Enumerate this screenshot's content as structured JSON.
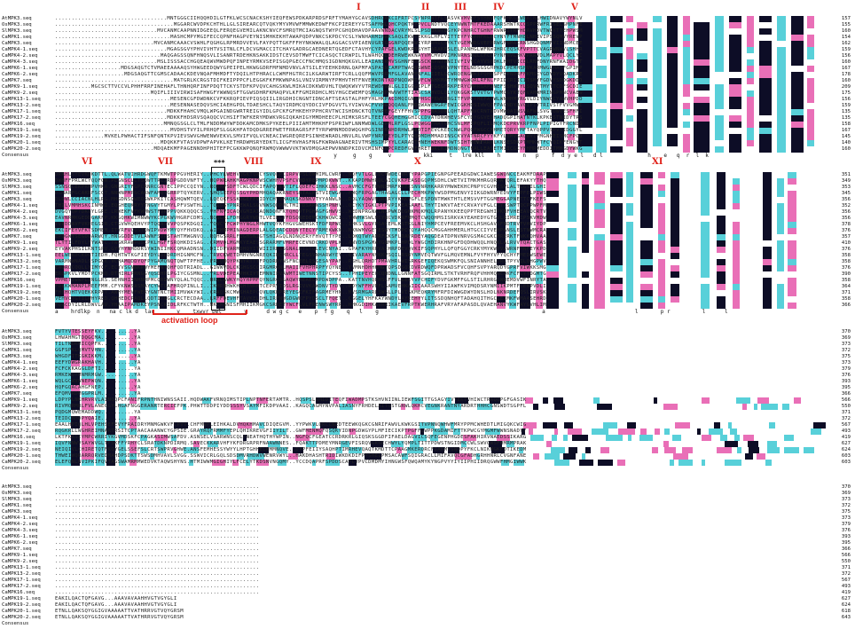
{
  "sequences": [
    "AtMPK3.seq",
    "OsMPK3.seq",
    "SlMPK3.seq",
    "CaMPK1.seq",
    "CaMPK3.seq",
    "CaMPK4-1.seq",
    "CaMPK4-2.seq",
    "CaMPK4-3.seq",
    "CaMPK6-1.seq",
    "CaMPK6-2.seq",
    "CaMPK7.seq",
    "CaMPK9-1.seq",
    "CaMPK9-2.seq",
    "CaMPK13-1.seq",
    "CaMPK13-2.seq",
    "CaMPK17-1.seq",
    "CaMPK17-2.seq",
    "CaMPK16.seq",
    "CaMPK19-1.seq",
    "CaMPK19-2.seq",
    "CaMPK20-1.seq",
    "CaMPK20-2.seq"
  ],
  "consensus_label": "Consensus",
  "blocks": [
    {
      "start_seq": [
        "MNTGGG",
        "MGGA",
        "MVCANMCAA",
        "MASHC",
        "MVCANMCAAA",
        "MGAGSG",
        "MAQGAGSS",
        "MSLISSSAC",
        "MDGSAQGTCTVMAEEAAAAQ",
        "MDGSAQGTTCGMSCADAAC",
        "MATG",
        "MGCSCTTVCCVLPHHFRRFINEHAFLTHN",
        "MQIFLIIIVIR",
        "MESEN",
        "MESEN",
        "MDKKFH",
        "MDKKFH",
        "MMNQGSG",
        "MVDHS",
        "MVKELPWHACTIFSNFQNTKPVIEV",
        "MDQKKFVT",
        "MDQAEKMFPA"
      ],
      "end_nums": [
        157,
        155,
        160,
        154,
        162,
        159,
        156,
        160,
        167,
        178,
        160,
        209,
        175,
        156,
        159,
        135,
        135,
        158,
        167,
        145,
        140,
        160
      ]
    },
    {
      "end_nums": [
        351,
        349,
        353,
        345,
        356,
        352,
        356,
        356,
        378,
        376,
        357,
        410,
        376,
        358,
        358,
        376,
        390,
        358,
        364,
        371,
        358,
        366
      ]
    },
    {
      "end_nums": [
        370,
        369,
        373,
        372,
        375,
        373,
        379,
        376,
        393,
        395,
        366,
        566,
        550,
        371,
        372,
        567,
        493,
        419,
        627,
        624,
        603,
        603
      ]
    },
    {
      "tail_seq": [
        "",
        "",
        "",
        "",
        "",
        "",
        "",
        "",
        "",
        "",
        "",
        "",
        "",
        "",
        "",
        "",
        "",
        "",
        "EAKILQACTQFGAVG...AAAVAVAAHHVGTVGYGLI",
        "EAKILQACTQFGAVG...AAAVAVAAHHVGTVGYGLI",
        "ETNLLQAKSQYGGIGVAAAAATTVATHRRVGTVQYGRSM",
        "ETNLLQAKSQYGGIGVAAAAATTVATHRRVGTVQYGRSM"
      ],
      "end_nums": [
        370,
        369,
        373,
        372,
        375,
        373,
        379,
        376,
        393,
        395,
        366,
        566,
        550,
        371,
        372,
        567,
        493,
        419,
        627,
        624,
        618,
        643
      ]
    }
  ],
  "consensus_lines": [
    "                                                                                       y     g    g     v          kki     t   lre kll    h       n   p    f  d y e l   d l              h    e   q  r  l  k",
    "a    hrdlkp  n   na c lk d  lar       y    txwyr pel       y      d w g c   e    p  f g    q   l    g                                                   a                            l       p r          l      l",
    "",
    ""
  ],
  "domains_row1": [
    "I",
    "II",
    "III",
    "IV",
    "V"
  ],
  "domains_row2": [
    "VI",
    "VII",
    "VIII",
    "IX",
    "X",
    "XI"
  ],
  "small_vi_mark": "VI",
  "motif_stars": "***",
  "activation_loop_label": "activation loop",
  "colors": {
    "black": "#0d0d26",
    "pink": "#e96fb7",
    "cyan": "#58d0d9",
    "red": "#e0231b"
  }
}
